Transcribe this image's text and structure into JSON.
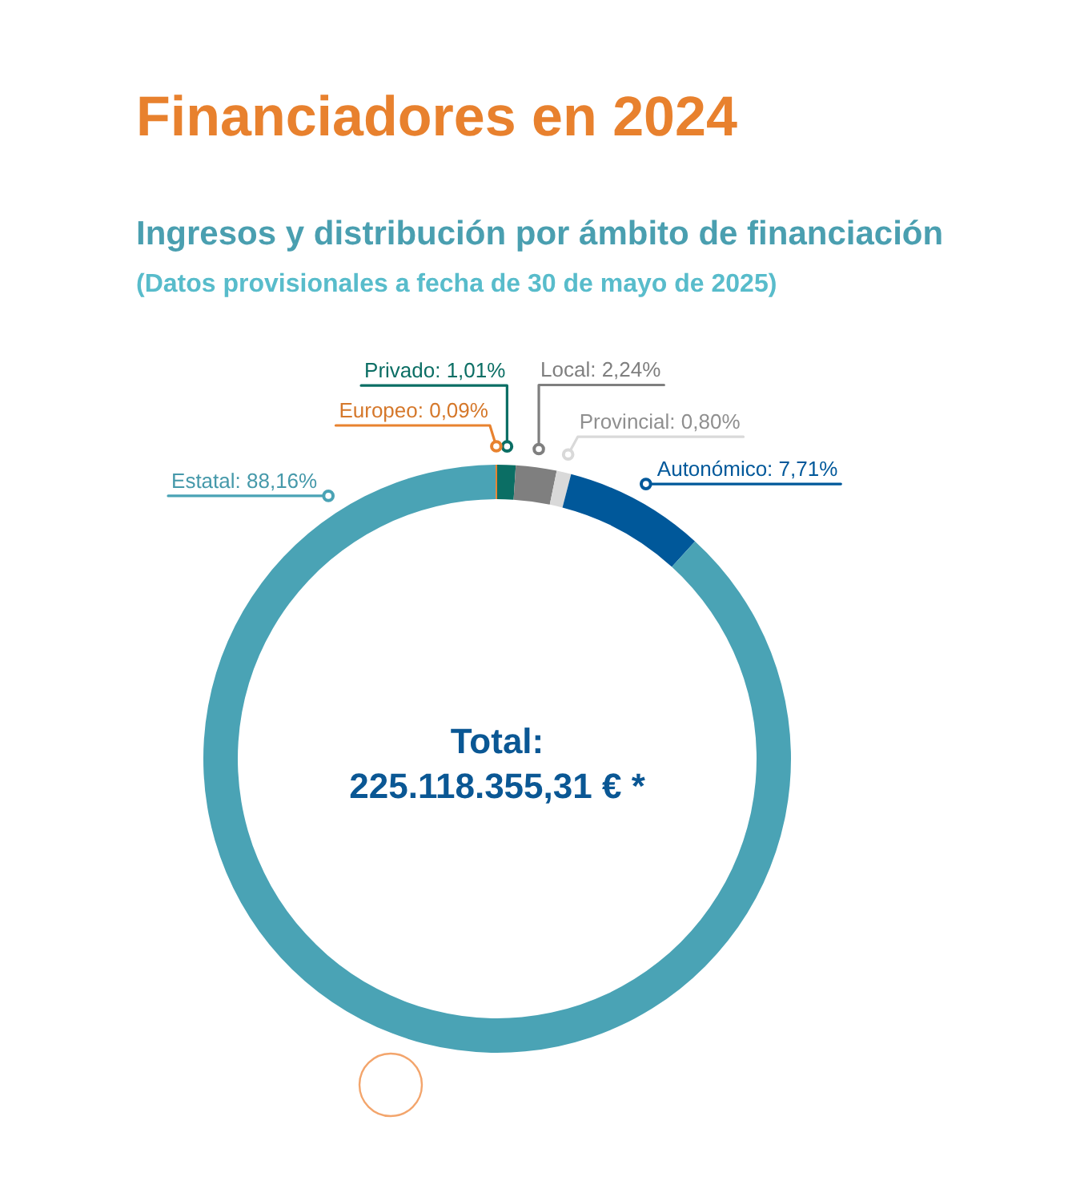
{
  "chart_data": {
    "type": "donut",
    "title": "Financiadores en 2024",
    "subtitle": "Ingresos y distribución por ámbito de financiación",
    "annotations": [
      "(Datos provisionales a fecha de 30 de mayo de 2025)",
      "Total:\n225.118.355,31 € *"
    ],
    "categories": [
      "Privado",
      "Local",
      "Provincial",
      "Autonómico",
      "Estatal",
      "Europeo"
    ],
    "values": [
      1.01,
      2.24,
      0.8,
      7.71,
      88.16,
      0.09
    ],
    "value_labels": [
      "1,01%",
      "2,24%",
      "0,80%",
      "7,71%",
      "88,16%",
      "0,09%"
    ],
    "colors": [
      "#0b6e64",
      "#7f7f7f",
      "#d9d9d9",
      "#00589a",
      "#4aa3b5",
      "#e8822f"
    ]
  }
}
